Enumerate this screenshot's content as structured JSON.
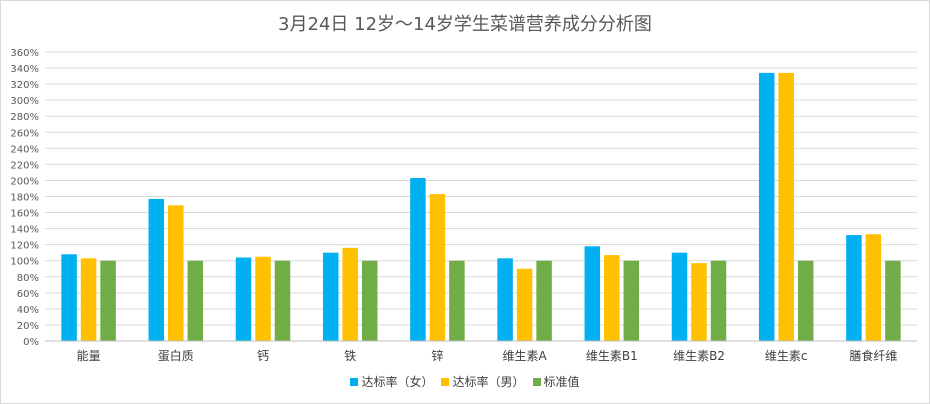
{
  "chart_data": {
    "type": "bar",
    "title": "3月24日 12岁～14岁学生菜谱营养成分分析图",
    "xlabel": "",
    "ylabel": "",
    "ylim": [
      0,
      360
    ],
    "y_tick_step": 20,
    "y_unit": "%",
    "grid": true,
    "legend_position": "bottom",
    "categories": [
      "能量",
      "蛋白质",
      "钙",
      "铁",
      "锌",
      "维生素A",
      "维生素B1",
      "维生素B2",
      "维生素c",
      "膳食纤维"
    ],
    "series": [
      {
        "name": "达标率（女）",
        "color": "#00b0f0",
        "values": [
          108,
          177,
          104,
          110,
          203,
          103,
          118,
          110,
          334,
          132
        ]
      },
      {
        "name": "达标率（男）",
        "color": "#ffc000",
        "values": [
          103,
          169,
          105,
          116,
          183,
          90,
          107,
          97,
          334,
          133
        ]
      },
      {
        "name": "标准值",
        "color": "#70ad47",
        "values": [
          100,
          100,
          100,
          100,
          100,
          100,
          100,
          100,
          100,
          100
        ]
      }
    ]
  }
}
